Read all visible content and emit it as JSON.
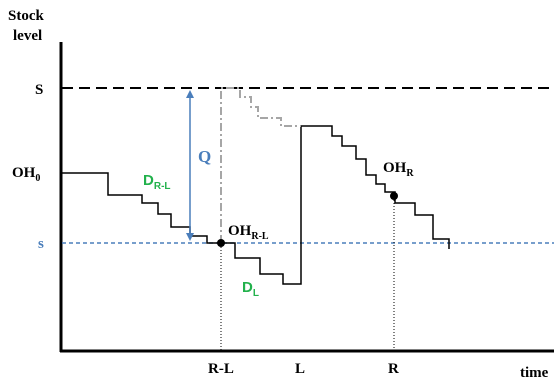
{
  "axes": {
    "y_label_line1": "Stock",
    "y_label_line2": "level",
    "x_label": "time"
  },
  "levels": {
    "S": "S",
    "s": "s",
    "OH0_main": "OH",
    "OH0_sub": "0"
  },
  "times": {
    "R_minus_L": "R-L",
    "L": "L",
    "R": "R"
  },
  "annotations": {
    "Q": "Q",
    "D_RL_main": "D",
    "D_RL_sub": "R-L",
    "D_L_main": "D",
    "D_L_sub": "L",
    "OH_RL_main": "OH",
    "OH_RL_sub": "R-L",
    "OH_R_main": "OH",
    "OH_R_sub": "R"
  },
  "colors": {
    "axis": "#000000",
    "S_line": "#000000",
    "s_line": "#4a7ebb",
    "s_label": "#4a7ebb",
    "Q_arrow": "#4a7ebb",
    "Q_label": "#4a7ebb",
    "demand_label": "#22b14c",
    "stock_path": "#000000",
    "projection_path": "#a6a6a6"
  }
}
